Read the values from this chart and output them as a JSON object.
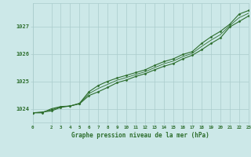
{
  "title": "Graphe pression niveau de la mer (hPa)",
  "background_color": "#cce8e8",
  "plot_bg_color": "#cce8e8",
  "grid_color": "#aacccc",
  "line_color": "#2d6e2d",
  "text_color": "#2d6e2d",
  "xlim": [
    0,
    23
  ],
  "ylim": [
    1023.5,
    1027.85
  ],
  "xticks": [
    0,
    2,
    3,
    4,
    5,
    6,
    7,
    8,
    9,
    10,
    11,
    12,
    13,
    14,
    15,
    16,
    17,
    18,
    19,
    20,
    21,
    22,
    23
  ],
  "yticks": [
    1024,
    1025,
    1026,
    1027
  ],
  "series1_x": [
    0,
    1,
    2,
    3,
    4,
    5,
    6,
    7,
    8,
    9,
    10,
    11,
    12,
    13,
    14,
    15,
    16,
    17,
    18,
    19,
    20,
    21,
    22,
    23
  ],
  "series1_y": [
    1023.85,
    1023.88,
    1023.92,
    1024.05,
    1024.1,
    1024.18,
    1024.48,
    1024.62,
    1024.78,
    1024.95,
    1025.05,
    1025.18,
    1025.28,
    1025.42,
    1025.55,
    1025.65,
    1025.82,
    1025.95,
    1026.15,
    1026.38,
    1026.58,
    1026.98,
    1027.18,
    1027.38
  ],
  "series2_x": [
    0,
    1,
    2,
    3,
    4,
    5,
    6,
    7,
    8,
    9,
    10,
    11,
    12,
    13,
    14,
    15,
    16,
    17,
    18,
    19,
    20,
    21,
    22,
    23
  ],
  "series2_y": [
    1023.85,
    1023.85,
    1024.0,
    1024.08,
    1024.1,
    1024.2,
    1024.62,
    1024.85,
    1025.0,
    1025.12,
    1025.22,
    1025.32,
    1025.42,
    1025.58,
    1025.72,
    1025.82,
    1025.98,
    1026.08,
    1026.38,
    1026.62,
    1026.82,
    1027.08,
    1027.45,
    1027.58
  ],
  "series3_x": [
    0,
    1,
    2,
    3,
    4,
    5,
    6,
    7,
    8,
    9,
    10,
    11,
    12,
    13,
    14,
    15,
    16,
    17,
    18,
    19,
    20,
    21,
    22,
    23
  ],
  "series3_y": [
    1023.85,
    1023.87,
    1023.96,
    1024.07,
    1024.1,
    1024.19,
    1024.55,
    1024.74,
    1024.89,
    1025.04,
    1025.14,
    1025.25,
    1025.35,
    1025.5,
    1025.64,
    1025.74,
    1025.9,
    1026.02,
    1026.27,
    1026.5,
    1026.7,
    1027.03,
    1027.32,
    1027.48
  ]
}
